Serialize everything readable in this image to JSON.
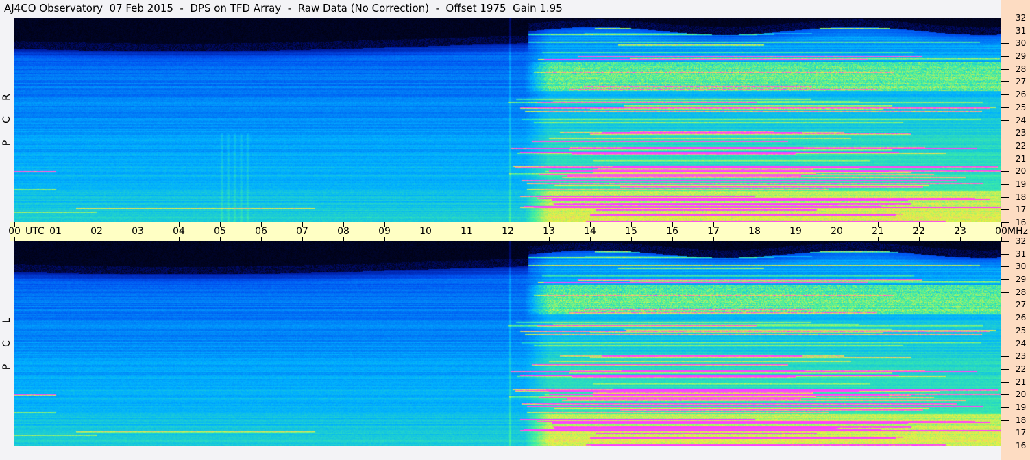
{
  "title": "AJ4CO Observatory  07 Feb 2015  -  DPS on TFD Array  -  Raw Data (No Correction)  -  Offset 1975  Gain 1.95",
  "chart_data": {
    "type": "heatmap",
    "title": "AJ4CO Observatory  07 Feb 2015  -  DPS on TFD Array  -  Raw Data (No Correction)  -  Offset 1975  Gain 1.95",
    "x_unit": "UTC",
    "y_unit": "MHz",
    "x_ticks": [
      "00",
      "01",
      "02",
      "03",
      "04",
      "05",
      "06",
      "07",
      "08",
      "09",
      "10",
      "11",
      "12",
      "13",
      "14",
      "15",
      "16",
      "17",
      "18",
      "19",
      "20",
      "21",
      "22",
      "23",
      "00"
    ],
    "y_ticks": [
      "16",
      "17",
      "18",
      "19",
      "20",
      "21",
      "22",
      "23",
      "24",
      "25",
      "26",
      "27",
      "28",
      "29",
      "30",
      "31",
      "32"
    ],
    "xlim": [
      0,
      24
    ],
    "ylim": [
      16,
      32
    ],
    "panels": [
      {
        "name": "R C P",
        "letters": [
          "R",
          "C",
          "P"
        ]
      },
      {
        "name": "L C P",
        "letters": [
          "L",
          "C",
          "P"
        ]
      }
    ],
    "colormap": [
      "#000000",
      "#001090",
      "#0050f0",
      "#00b0ff",
      "#40f0a0",
      "#f0f040",
      "#ff40ff"
    ]
  }
}
